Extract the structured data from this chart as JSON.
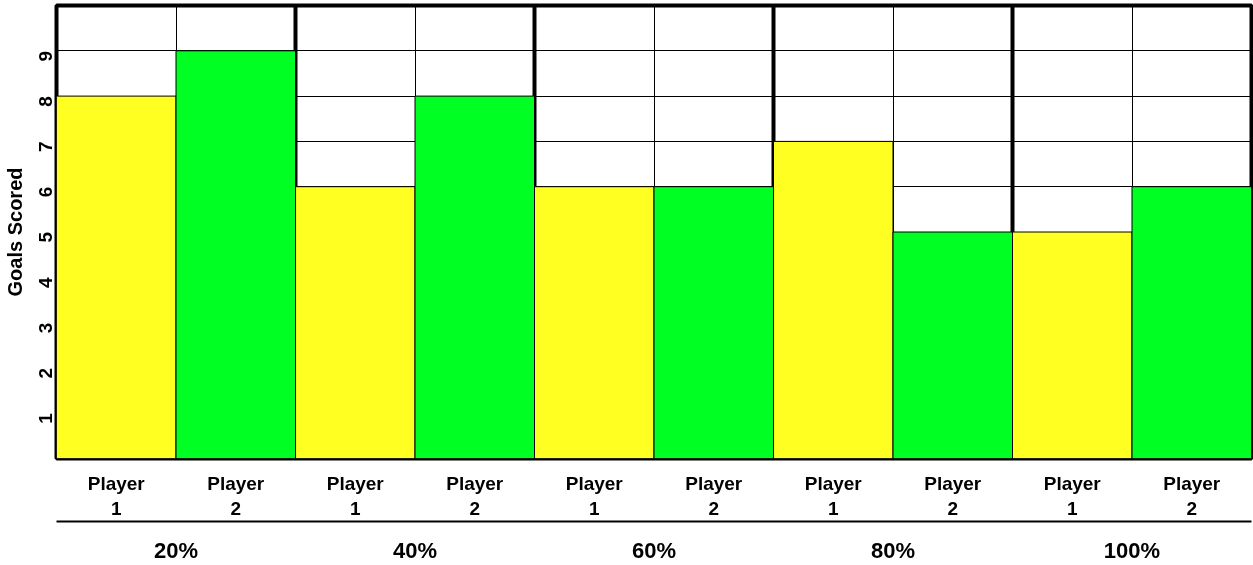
{
  "chart_data": {
    "type": "bar",
    "ylabel": "Goals Scored",
    "categories": [
      "20%",
      "40%",
      "60%",
      "80%",
      "100%"
    ],
    "series": [
      {
        "name": "Player 1",
        "color": "#ffff22",
        "values": [
          8,
          6,
          6,
          7,
          5
        ]
      },
      {
        "name": "Player 2",
        "color": "#00ff22",
        "values": [
          9,
          8,
          6,
          5,
          6
        ]
      }
    ],
    "ylim": [
      0,
      10
    ],
    "yticks": [
      1,
      2,
      3,
      4,
      5,
      6,
      7,
      8,
      9
    ],
    "grid": true
  }
}
